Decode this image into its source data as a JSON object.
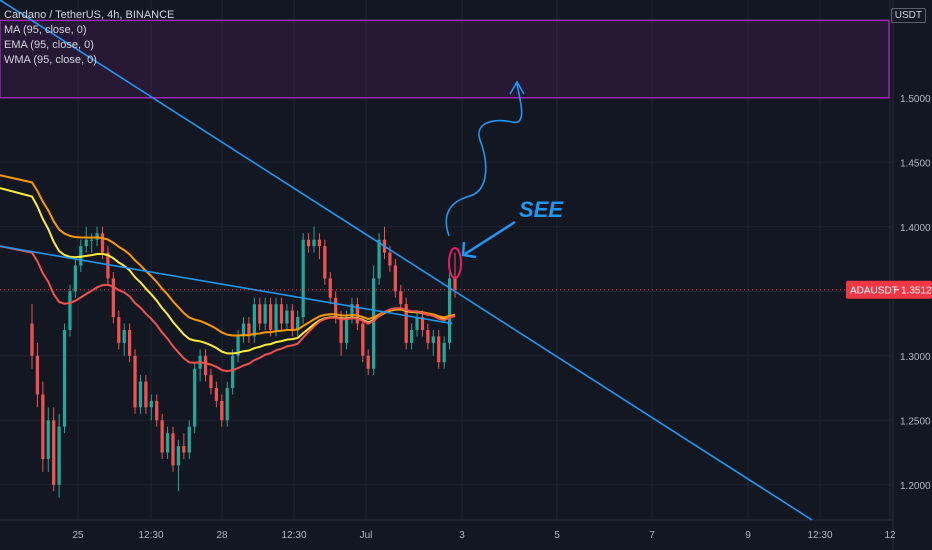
{
  "legend": {
    "symbol_line": "Cardano / TetherUS, 4h, BINANCE",
    "indicators": [
      "MA (95, close, 0)",
      "EMA (95, close, 0)",
      "WMA (95, close, 0)"
    ]
  },
  "currency_label": "USDT",
  "price_tag": {
    "symbol": "ADAUSDT",
    "value": "1.3512",
    "color": "#f23645"
  },
  "annotation_text": "SEE",
  "colors": {
    "background": "#131722",
    "grid": "#1f2433",
    "up": "#26a69a",
    "down": "#ef5350",
    "ma": "#ff9800",
    "ema": "#ffeb3b",
    "wma": "#ef5350",
    "trendline": "#2196f3",
    "zone": "#9c27b0"
  },
  "chart_data": {
    "type": "candlestick",
    "y_ticks": [
      "1.5000",
      "1.4500",
      "1.4000",
      "1.3500",
      "1.3000",
      "1.2500",
      "1.2000"
    ],
    "y_tick_values": [
      1.5,
      1.45,
      1.4,
      1.35,
      1.3,
      1.25,
      1.2
    ],
    "x_ticks": [
      "25",
      "12:30",
      "28",
      "12:30",
      "Jul",
      "3",
      "5",
      "7",
      "9",
      "12:30",
      "12"
    ],
    "current_price": 1.3512,
    "resistance_zone": {
      "from": 1.5,
      "to": 1.56
    },
    "candles": [
      [
        1.325,
        1.3,
        1.34,
        1.29
      ],
      [
        1.3,
        1.27,
        1.31,
        1.26
      ],
      [
        1.27,
        1.22,
        1.28,
        1.21
      ],
      [
        1.22,
        1.25,
        1.26,
        1.21
      ],
      [
        1.25,
        1.2,
        1.26,
        1.195
      ],
      [
        1.2,
        1.245,
        1.255,
        1.19
      ],
      [
        1.245,
        1.32,
        1.325,
        1.24
      ],
      [
        1.32,
        1.35,
        1.355,
        1.315
      ],
      [
        1.35,
        1.37,
        1.375,
        1.345
      ],
      [
        1.37,
        1.385,
        1.39,
        1.365
      ],
      [
        1.385,
        1.39,
        1.4,
        1.38
      ],
      [
        1.39,
        1.39,
        1.395,
        1.38
      ],
      [
        1.39,
        1.395,
        1.4,
        1.385
      ],
      [
        1.395,
        1.38,
        1.4,
        1.375
      ],
      [
        1.38,
        1.36,
        1.385,
        1.355
      ],
      [
        1.36,
        1.33,
        1.365,
        1.325
      ],
      [
        1.33,
        1.31,
        1.335,
        1.305
      ],
      [
        1.31,
        1.32,
        1.325,
        1.3
      ],
      [
        1.32,
        1.3,
        1.325,
        1.295
      ],
      [
        1.3,
        1.26,
        1.305,
        1.255
      ],
      [
        1.26,
        1.28,
        1.285,
        1.255
      ],
      [
        1.28,
        1.26,
        1.285,
        1.255
      ],
      [
        1.26,
        1.265,
        1.27,
        1.25
      ],
      [
        1.265,
        1.25,
        1.27,
        1.245
      ],
      [
        1.25,
        1.225,
        1.255,
        1.22
      ],
      [
        1.225,
        1.24,
        1.245,
        1.22
      ],
      [
        1.24,
        1.215,
        1.245,
        1.21
      ],
      [
        1.215,
        1.23,
        1.235,
        1.195
      ],
      [
        1.23,
        1.225,
        1.24,
        1.22
      ],
      [
        1.225,
        1.245,
        1.25,
        1.22
      ],
      [
        1.245,
        1.29,
        1.295,
        1.24
      ],
      [
        1.29,
        1.3,
        1.305,
        1.28
      ],
      [
        1.3,
        1.285,
        1.305,
        1.28
      ],
      [
        1.285,
        1.275,
        1.29,
        1.27
      ],
      [
        1.275,
        1.265,
        1.28,
        1.26
      ],
      [
        1.265,
        1.25,
        1.27,
        1.245
      ],
      [
        1.25,
        1.275,
        1.28,
        1.245
      ],
      [
        1.275,
        1.3,
        1.305,
        1.27
      ],
      [
        1.3,
        1.315,
        1.32,
        1.295
      ],
      [
        1.315,
        1.325,
        1.33,
        1.31
      ],
      [
        1.325,
        1.315,
        1.33,
        1.31
      ],
      [
        1.315,
        1.34,
        1.345,
        1.31
      ],
      [
        1.34,
        1.325,
        1.345,
        1.32
      ],
      [
        1.325,
        1.34,
        1.345,
        1.32
      ],
      [
        1.34,
        1.32,
        1.345,
        1.315
      ],
      [
        1.32,
        1.34,
        1.345,
        1.315
      ],
      [
        1.34,
        1.325,
        1.345,
        1.32
      ],
      [
        1.325,
        1.335,
        1.34,
        1.32
      ],
      [
        1.335,
        1.32,
        1.34,
        1.315
      ],
      [
        1.32,
        1.33,
        1.335,
        1.315
      ],
      [
        1.33,
        1.39,
        1.395,
        1.325
      ],
      [
        1.39,
        1.385,
        1.395,
        1.38
      ],
      [
        1.385,
        1.39,
        1.4,
        1.38
      ],
      [
        1.39,
        1.385,
        1.395,
        1.375
      ],
      [
        1.385,
        1.36,
        1.39,
        1.355
      ],
      [
        1.36,
        1.345,
        1.365,
        1.34
      ],
      [
        1.345,
        1.33,
        1.35,
        1.325
      ],
      [
        1.33,
        1.31,
        1.335,
        1.3
      ],
      [
        1.31,
        1.33,
        1.335,
        1.305
      ],
      [
        1.33,
        1.34,
        1.345,
        1.325
      ],
      [
        1.34,
        1.325,
        1.345,
        1.32
      ],
      [
        1.325,
        1.3,
        1.33,
        1.295
      ],
      [
        1.3,
        1.29,
        1.305,
        1.285
      ],
      [
        1.29,
        1.36,
        1.37,
        1.285
      ],
      [
        1.36,
        1.39,
        1.395,
        1.355
      ],
      [
        1.39,
        1.38,
        1.4,
        1.375
      ],
      [
        1.38,
        1.37,
        1.385,
        1.365
      ],
      [
        1.37,
        1.35,
        1.375,
        1.345
      ],
      [
        1.35,
        1.34,
        1.355,
        1.335
      ],
      [
        1.34,
        1.31,
        1.345,
        1.305
      ],
      [
        1.31,
        1.32,
        1.325,
        1.305
      ],
      [
        1.32,
        1.33,
        1.335,
        1.315
      ],
      [
        1.33,
        1.32,
        1.335,
        1.315
      ],
      [
        1.32,
        1.31,
        1.325,
        1.305
      ],
      [
        1.31,
        1.315,
        1.32,
        1.3
      ],
      [
        1.315,
        1.295,
        1.32,
        1.29
      ],
      [
        1.295,
        1.31,
        1.315,
        1.29
      ],
      [
        1.31,
        1.36,
        1.365,
        1.305
      ],
      [
        1.36,
        1.3512,
        1.38,
        1.345
      ]
    ]
  }
}
